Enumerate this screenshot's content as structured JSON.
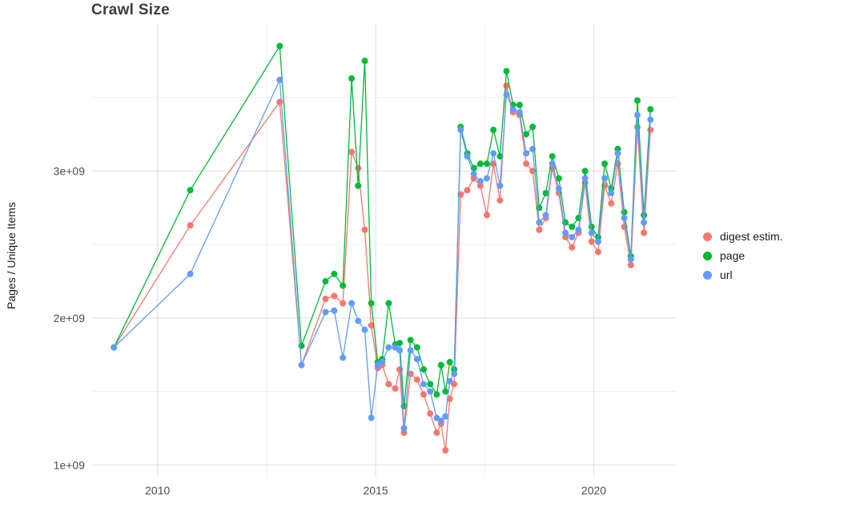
{
  "title": "Crawl Size",
  "axes": {
    "y_label": "Pages / Unique Items",
    "x_ticks": [
      "2010",
      "2015",
      "2020"
    ],
    "y_ticks": [
      "1e+09",
      "2e+09",
      "3e+09"
    ]
  },
  "legend": {
    "items": [
      {
        "label": "digest estim.",
        "color": "#F8766D"
      },
      {
        "label": "page",
        "color": "#00BA38"
      },
      {
        "label": "url",
        "color": "#619CFF"
      }
    ]
  },
  "chart_data": {
    "type": "line",
    "title": "Crawl Size",
    "xlabel": "",
    "ylabel": "Pages / Unique Items",
    "grid": true,
    "legend_position": "right",
    "xlim": [
      2008.5,
      2021.9
    ],
    "ylim": [
      920000000.0,
      4000000000.0
    ],
    "x_tick_values": [
      2010,
      2015,
      2020
    ],
    "x_tick_labels": [
      "2010",
      "2015",
      "2020"
    ],
    "x_minor": [
      2012.5,
      2017.5
    ],
    "y_tick_values": [
      1000000000.0,
      2000000000.0,
      3000000000.0
    ],
    "y_tick_labels": [
      "1e+09",
      "2e+09",
      "3e+09"
    ],
    "y_minor": [
      1500000000.0,
      2500000000.0,
      3500000000.0
    ],
    "x": [
      2009.0,
      2010.75,
      2012.8,
      2013.3,
      2013.85,
      2014.05,
      2014.25,
      2014.45,
      2014.6,
      2014.75,
      2014.9,
      2015.05,
      2015.15,
      2015.3,
      2015.45,
      2015.55,
      2015.65,
      2015.8,
      2015.95,
      2016.1,
      2016.25,
      2016.4,
      2016.5,
      2016.6,
      2016.7,
      2016.8,
      2016.95,
      2017.1,
      2017.25,
      2017.4,
      2017.55,
      2017.7,
      2017.85,
      2018.0,
      2018.15,
      2018.3,
      2018.45,
      2018.6,
      2018.75,
      2018.9,
      2019.05,
      2019.2,
      2019.35,
      2019.5,
      2019.65,
      2019.8,
      2019.95,
      2020.1,
      2020.25,
      2020.4,
      2020.55,
      2020.7,
      2020.85,
      2021.0,
      2021.15,
      2021.3
    ],
    "series": [
      {
        "name": "digest estim.",
        "color": "#F8766D",
        "values": [
          1800000000.0,
          2630000000.0,
          3470000000.0,
          1680000000.0,
          2130000000.0,
          2150000000.0,
          2100000000.0,
          3130000000.0,
          3020000000.0,
          2600000000.0,
          1950000000.0,
          1660000000.0,
          1680000000.0,
          1550000000.0,
          1520000000.0,
          1650000000.0,
          1220000000.0,
          1620000000.0,
          1580000000.0,
          1480000000.0,
          1350000000.0,
          1220000000.0,
          1280000000.0,
          1100000000.0,
          1450000000.0,
          1550000000.0,
          2840000000.0,
          2870000000.0,
          2950000000.0,
          2900000000.0,
          2700000000.0,
          3050000000.0,
          2800000000.0,
          3580000000.0,
          3400000000.0,
          3380000000.0,
          3050000000.0,
          3000000000.0,
          2600000000.0,
          2680000000.0,
          3020000000.0,
          2850000000.0,
          2550000000.0,
          2480000000.0,
          2580000000.0,
          2920000000.0,
          2520000000.0,
          2450000000.0,
          2900000000.0,
          2780000000.0,
          3050000000.0,
          2620000000.0,
          2360000000.0,
          3300000000.0,
          2580000000.0,
          3280000000.0
        ]
      },
      {
        "name": "page",
        "color": "#00BA38",
        "values": [
          1800000000.0,
          2870000000.0,
          3850000000.0,
          1810000000.0,
          2250000000.0,
          2300000000.0,
          2220000000.0,
          3630000000.0,
          2900000000.0,
          3750000000.0,
          2100000000.0,
          1700000000.0,
          1720000000.0,
          2100000000.0,
          1820000000.0,
          1830000000.0,
          1400000000.0,
          1850000000.0,
          1800000000.0,
          1650000000.0,
          1550000000.0,
          1480000000.0,
          1680000000.0,
          1500000000.0,
          1700000000.0,
          1650000000.0,
          3300000000.0,
          3120000000.0,
          3020000000.0,
          3050000000.0,
          3050000000.0,
          3280000000.0,
          3100000000.0,
          3680000000.0,
          3450000000.0,
          3450000000.0,
          3250000000.0,
          3300000000.0,
          2750000000.0,
          2850000000.0,
          3100000000.0,
          2950000000.0,
          2650000000.0,
          2620000000.0,
          2680000000.0,
          3000000000.0,
          2620000000.0,
          2550000000.0,
          3050000000.0,
          2880000000.0,
          3150000000.0,
          2720000000.0,
          2420000000.0,
          3480000000.0,
          2700000000.0,
          3420000000.0
        ]
      },
      {
        "name": "url",
        "color": "#619CFF",
        "values": [
          1800000000.0,
          2300000000.0,
          3620000000.0,
          1680000000.0,
          2040000000.0,
          2050000000.0,
          1730000000.0,
          2100000000.0,
          1980000000.0,
          1920000000.0,
          1320000000.0,
          1680000000.0,
          1700000000.0,
          1800000000.0,
          1800000000.0,
          1780000000.0,
          1250000000.0,
          1780000000.0,
          1720000000.0,
          1550000000.0,
          1500000000.0,
          1320000000.0,
          1300000000.0,
          1330000000.0,
          1570000000.0,
          1620000000.0,
          3280000000.0,
          3100000000.0,
          2980000000.0,
          2930000000.0,
          2950000000.0,
          3120000000.0,
          2900000000.0,
          3520000000.0,
          3420000000.0,
          3400000000.0,
          3120000000.0,
          3150000000.0,
          2650000000.0,
          2700000000.0,
          3050000000.0,
          2880000000.0,
          2580000000.0,
          2550000000.0,
          2600000000.0,
          2950000000.0,
          2580000000.0,
          2520000000.0,
          2950000000.0,
          2850000000.0,
          3120000000.0,
          2680000000.0,
          2400000000.0,
          3380000000.0,
          2650000000.0,
          3350000000.0
        ]
      }
    ],
    "style": {
      "grid_major_color": "#e4e4e4",
      "grid_minor_color": "#f1f1f1",
      "tick_label_color": "#4d4d4d",
      "background": "#ffffff",
      "point_radius": 4,
      "line_width": 1.3
    }
  }
}
